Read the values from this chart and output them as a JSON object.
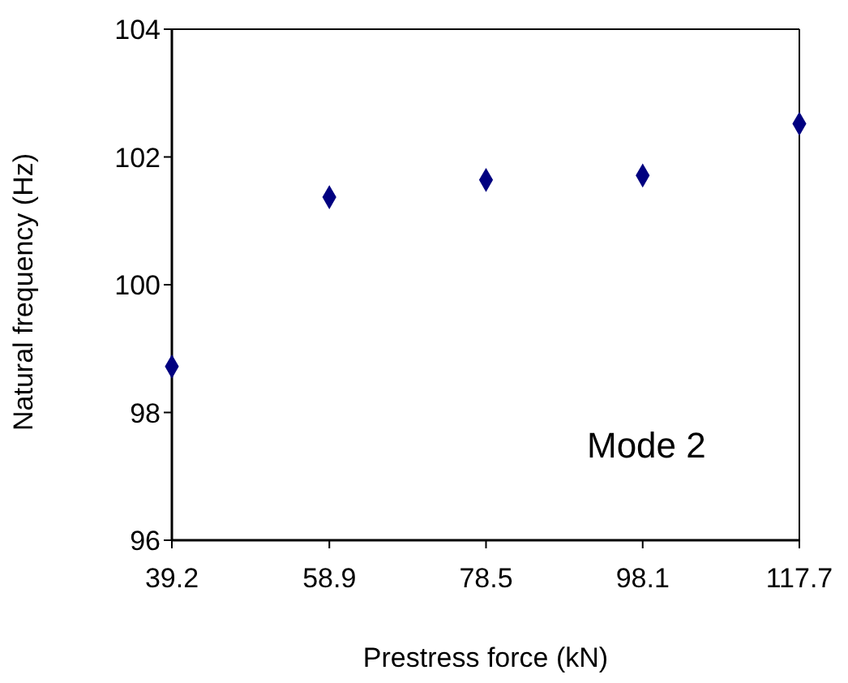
{
  "chart_data": {
    "type": "scatter",
    "xlabel": "Prestress force (kN)",
    "ylabel": "Natural frequency (Hz)",
    "x": [
      39.2,
      58.9,
      78.5,
      98.1,
      117.7
    ],
    "series": [
      {
        "color": "#000080",
        "values": [
          98.72,
          101.37,
          101.64,
          101.71,
          102.52
        ]
      }
    ],
    "xlim": [
      39.2,
      117.7
    ],
    "xticks": [
      39.2,
      58.9,
      78.5,
      98.1,
      117.7
    ],
    "ylim": [
      96,
      104
    ],
    "yticks": [
      96,
      98,
      100,
      102,
      104
    ],
    "marker": "diamond",
    "annotations": [
      "Mode 2"
    ]
  }
}
